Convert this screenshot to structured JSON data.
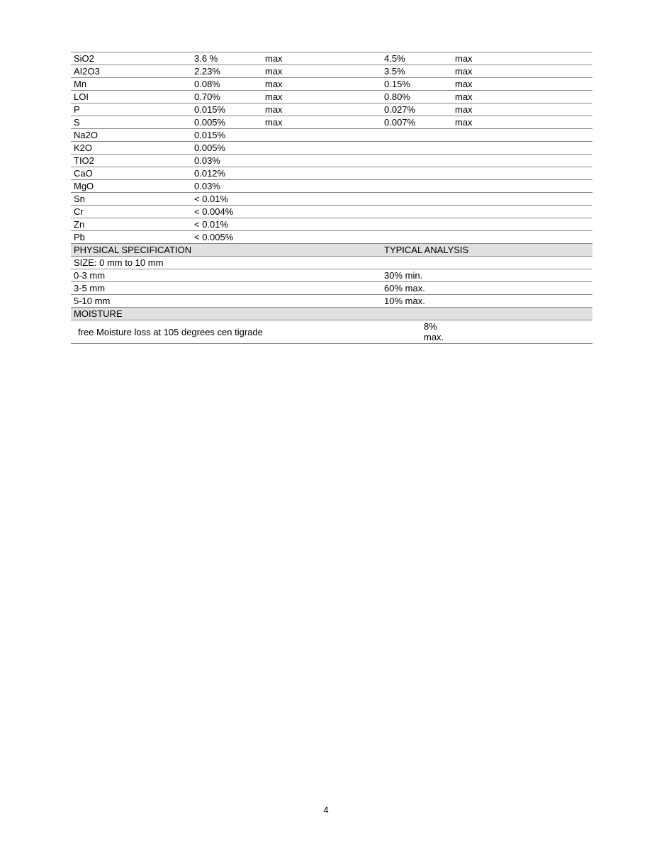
{
  "chem_rows": [
    {
      "name": "SiO2",
      "v1": "3.6 %",
      "q1": "max",
      "v2": "4.5%",
      "q2": "max"
    },
    {
      "name": "AI2O3",
      "v1": "2.23%",
      "q1": "max",
      "v2": "3.5%",
      "q2": "max"
    },
    {
      "name": "Mn",
      "v1": "0.08%",
      "q1": "max",
      "v2": "0.15%",
      "q2": "max"
    },
    {
      "name": "LOI",
      "v1": "0.70%",
      "q1": "max",
      "v2": "0.80%",
      "q2": "max"
    },
    {
      "name": "P",
      "v1": "0.015%",
      "q1": "max",
      "v2": "0.027%",
      "q2": "max"
    },
    {
      "name": "S",
      "v1": "0.005%",
      "q1": "max",
      "v2": "0.007%",
      "q2": "max"
    },
    {
      "name": "Na2O",
      "v1": "0.015%",
      "q1": "",
      "v2": "",
      "q2": ""
    },
    {
      "name": "K2O",
      "v1": "0.005%",
      "q1": "",
      "v2": "",
      "q2": ""
    },
    {
      "name": "TIO2",
      "v1": "0.03%",
      "q1": "",
      "v2": "",
      "q2": ""
    },
    {
      "name": "CaO",
      "v1": "0.012%",
      "q1": "",
      "v2": "",
      "q2": ""
    },
    {
      "name": "MgO",
      "v1": "0.03%",
      "q1": "",
      "v2": "",
      "q2": ""
    },
    {
      "name": "Sn",
      "v1": "< 0.01%",
      "q1": "",
      "v2": "",
      "q2": ""
    },
    {
      "name": "Cr",
      "v1": "< 0.004%",
      "q1": "",
      "v2": "",
      "q2": ""
    },
    {
      "name": "Zn",
      "v1": "< 0.01%",
      "q1": "",
      "v2": "",
      "q2": ""
    },
    {
      "name": "Pb",
      "v1": "< 0.005%",
      "q1": "",
      "v2": "",
      "q2": ""
    }
  ],
  "headers": {
    "physical_spec": "PHYSICAL SPECIFICATION",
    "typical_analysis": "TYPICAL ANALYSIS",
    "moisture": "MOISTURE"
  },
  "size_title": "SIZE: 0 mm to 10 mm",
  "size_rows": [
    {
      "range": "0-3 mm",
      "value": "30% min."
    },
    {
      "range": "3-5 mm",
      "value": "60% max."
    },
    {
      "range": "5-10 mm",
      "value": "10% max."
    }
  ],
  "moisture_row": {
    "label": "free Moisture loss at 105 degrees cen tigrade",
    "value": "8% max."
  },
  "page_number": "4"
}
